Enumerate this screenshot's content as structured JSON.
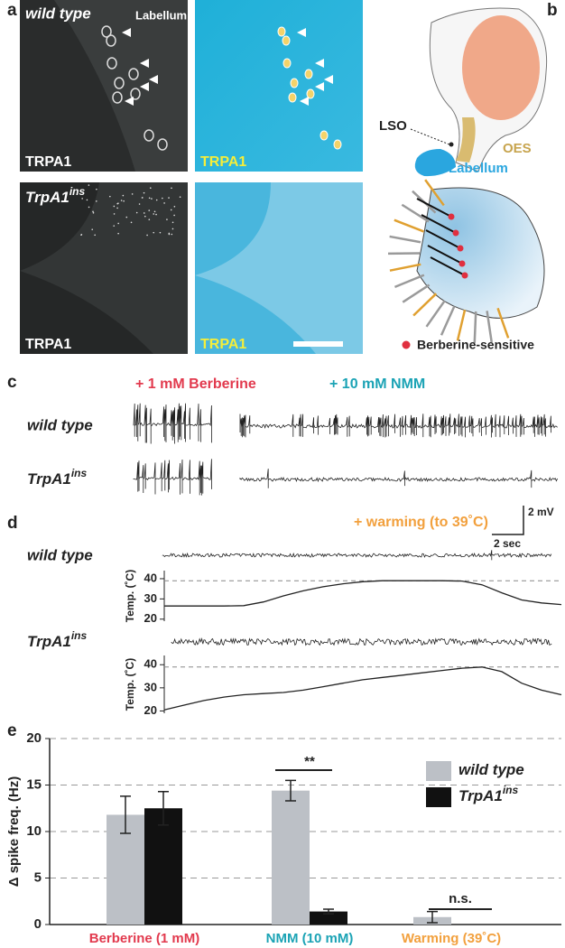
{
  "panel_labels": [
    "a",
    "b",
    "c",
    "d",
    "e"
  ],
  "a": {
    "wild_type": "wild type",
    "labellum": "Labellum",
    "stain": [
      "TRPA1",
      "TRPA1",
      "TRPA1",
      "TRPA1"
    ],
    "mutant": "TrpA1",
    "mutant_sup": "ins"
  },
  "b": {
    "lso": "LSO",
    "oes": "OES",
    "labellum": "Labellum",
    "legend": "Berberine-sensitive"
  },
  "c": {
    "berberine": "+ 1 mM Berberine",
    "nmm": "+ 10 mM NMM",
    "rows": [
      "wild type",
      "TrpA1"
    ],
    "row_sup": "ins",
    "scale_v": "2 mV",
    "scale_t": "2 sec"
  },
  "d": {
    "title": "+ warming (to 39˚C)",
    "rows": [
      "wild type",
      "TrpA1"
    ],
    "row_sup": "ins",
    "traces": [
      {
        "ylabel": "Temp. (˚C)",
        "values": [
          26.5,
          26.5,
          26.5,
          26.5,
          26.7,
          28.5,
          31.5,
          34,
          36,
          37.5,
          38.5,
          39,
          39,
          39,
          39,
          38.8,
          37,
          33,
          29.5,
          28,
          27.2
        ]
      },
      {
        "ylabel": "Temp. (˚C)",
        "values": [
          20.5,
          22.5,
          24.5,
          26,
          27,
          27.5,
          28,
          29,
          30.5,
          32,
          33.5,
          34.5,
          35.5,
          36.5,
          37.5,
          38.5,
          39,
          37,
          32,
          29,
          27
        ]
      }
    ],
    "ylim": [
      19,
      44
    ],
    "yticks": [
      20,
      30,
      40
    ],
    "threshold": 39
  },
  "chart_data": {
    "type": "bar",
    "ylabel": "Δ spike freq. (Hz)",
    "categories": [
      "Berberine (1 mM)",
      "NMM (10 mM)",
      "Warming (39˚C)"
    ],
    "category_colors": [
      "#e23a4e",
      "#1ba3b5",
      "#f2a03d"
    ],
    "series": [
      {
        "name": "wild type",
        "color": "#bcc0c6",
        "values": [
          11.8,
          14.4,
          0.8
        ],
        "errors": [
          2.0,
          1.1,
          0.6
        ]
      },
      {
        "name": "TrpA1",
        "name_sup": "ins",
        "color": "#111111",
        "values": [
          12.5,
          1.4,
          null
        ],
        "errors": [
          1.8,
          0.25,
          null
        ]
      }
    ],
    "ylim": [
      0,
      20
    ],
    "yticks": [
      0,
      5,
      10,
      15,
      20
    ],
    "grid": true,
    "legend": "upper right",
    "annotations": [
      "**",
      "n.s."
    ]
  }
}
